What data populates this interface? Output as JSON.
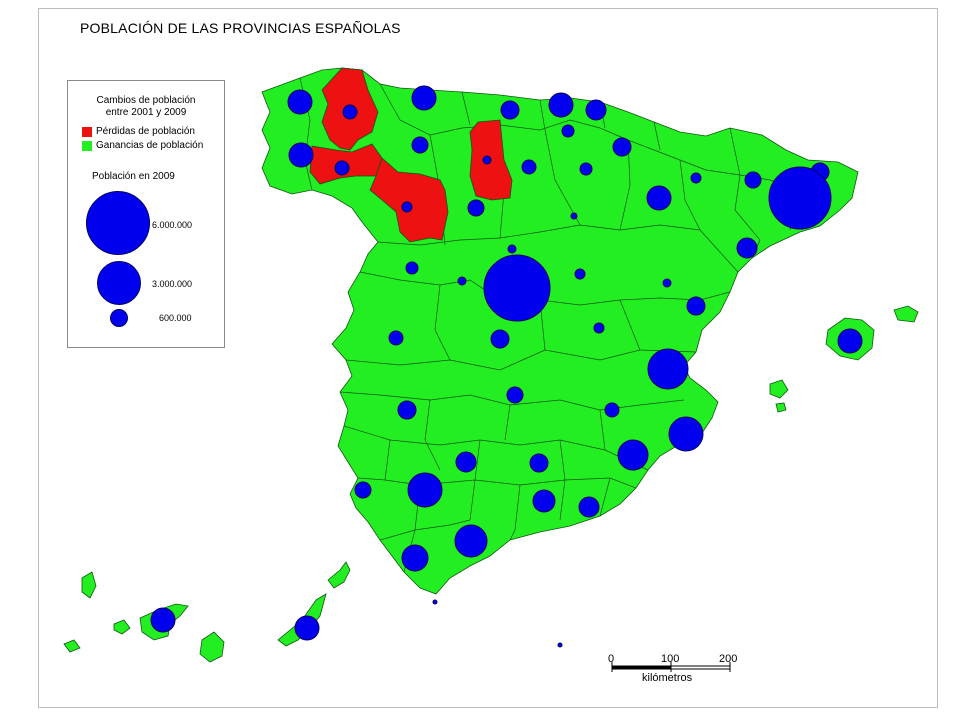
{
  "title": "POBLACIÓN DE LAS PROVINCIAS ESPAÑOLAS",
  "colors": {
    "gain": "#22ee22",
    "loss": "#ee1111",
    "bubble": "#0000ee",
    "border": "#115511"
  },
  "legend": {
    "title_line1": "Cambios de población",
    "title_line2": "entre 2001 y 2009",
    "loss_label": "Pérdidas de población",
    "gain_label": "Ganancias de población",
    "population_title": "Población en 2009",
    "sizes": [
      {
        "label": "6.000.000",
        "value": 6000000
      },
      {
        "label": "3.000.000",
        "value": 3000000
      },
      {
        "label": "600.000",
        "value": 600000
      }
    ]
  },
  "scale": {
    "ticks": [
      "0",
      "100",
      "200"
    ],
    "unit": "kilómetros"
  }
}
